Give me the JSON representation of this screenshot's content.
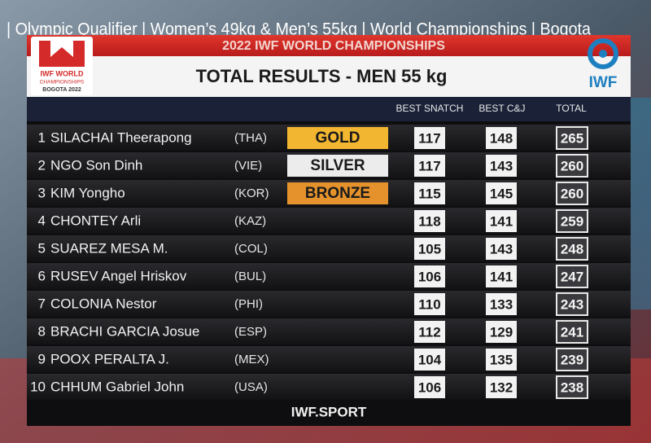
{
  "caption": "| Olympic Qualifier | Women’s 49kg & Men’s 55kg | World Championships | Bogota",
  "header": {
    "event": "2022 IWF WORLD CHAMPIONSHIPS",
    "title": "TOTAL RESULTS - MEN 55 kg",
    "logo_left": [
      "IWF WORLD",
      "CHAMPIONSHIPS",
      "BOGOTA 2022"
    ],
    "logo_right": "IWF"
  },
  "columns": {
    "snatch": "BEST SNATCH",
    "cj": "BEST C&J",
    "total": "TOTAL"
  },
  "rows": [
    {
      "rank": "1",
      "name": "SILACHAI Theerapong",
      "country": "(THA)",
      "medal": "GOLD",
      "snatch": "117",
      "cj": "148",
      "total": "265"
    },
    {
      "rank": "2",
      "name": "NGO Son Dinh",
      "country": "(VIE)",
      "medal": "SILVER",
      "snatch": "117",
      "cj": "143",
      "total": "260"
    },
    {
      "rank": "3",
      "name": "KIM Yongho",
      "country": "(KOR)",
      "medal": "BRONZE",
      "snatch": "115",
      "cj": "145",
      "total": "260"
    },
    {
      "rank": "4",
      "name": "CHONTEY Arli",
      "country": "(KAZ)",
      "snatch": "118",
      "cj": "141",
      "total": "259"
    },
    {
      "rank": "5",
      "name": "SUAREZ MESA M.",
      "country": "(COL)",
      "snatch": "105",
      "cj": "143",
      "total": "248"
    },
    {
      "rank": "6",
      "name": "RUSEV Angel Hriskov",
      "country": "(BUL)",
      "snatch": "106",
      "cj": "141",
      "total": "247"
    },
    {
      "rank": "7",
      "name": "COLONIA Nestor",
      "country": "(PHI)",
      "snatch": "110",
      "cj": "133",
      "total": "243"
    },
    {
      "rank": "8",
      "name": "BRACHI GARCIA Josue",
      "country": "(ESP)",
      "snatch": "112",
      "cj": "129",
      "total": "241"
    },
    {
      "rank": "9",
      "name": "POOX PERALTA J.",
      "country": "(MEX)",
      "snatch": "104",
      "cj": "135",
      "total": "239"
    },
    {
      "rank": "10",
      "name": "CHHUM Gabriel John",
      "country": "(USA)",
      "snatch": "106",
      "cj": "132",
      "total": "238"
    }
  ],
  "footer": "IWF.SPORT"
}
